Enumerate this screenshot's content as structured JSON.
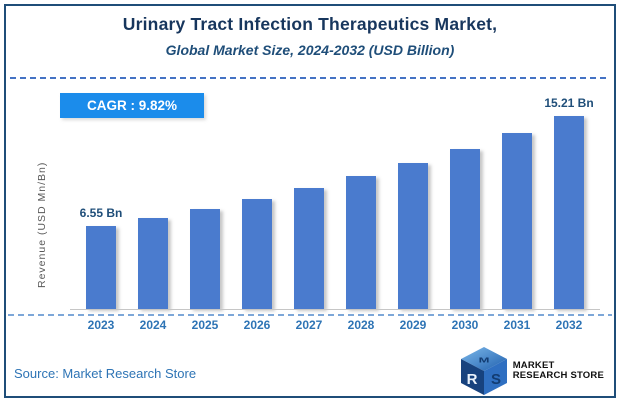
{
  "header": {
    "title": "Urinary Tract Infection Therapeutics Market,",
    "subtitle": "Global Market Size, 2024-2032 (USD Billion)"
  },
  "cagr": {
    "text": "CAGR :  9.82%"
  },
  "chart_data": {
    "type": "bar",
    "title": "Urinary Tract Infection Therapeutics Market, Global Market Size, 2024-2032 (USD Billion)",
    "categories": [
      "2023",
      "2024",
      "2025",
      "2026",
      "2027",
      "2028",
      "2029",
      "2030",
      "2031",
      "2032"
    ],
    "values": [
      6.55,
      7.19,
      7.9,
      8.67,
      9.53,
      10.46,
      11.49,
      12.62,
      13.86,
      15.21
    ],
    "unit": "USD Billion",
    "ylabel": "Revenue (USD Mn/Bn)",
    "xlabel": "",
    "ylim": [
      0,
      16
    ],
    "grid": false,
    "legend": "none",
    "cagr_percent": "9.82%",
    "bar_color": "#4a7bce",
    "data_labels": {
      "first": "6.55 Bn",
      "last": "15.21 Bn"
    }
  },
  "footer": {
    "source": "Source: Market Research Store",
    "logo_line1": "MARKET",
    "logo_line2": "RESEARCH STORE"
  },
  "colors": {
    "frame_border": "#1f4e79",
    "title": "#17365d",
    "subtitle": "#1f4e79",
    "badge_bg": "#1b8ceb",
    "badge_text": "#ffffff",
    "bar": "#4a7bce",
    "year_label": "#2e74b5",
    "value_label": "#1f4e79",
    "axis_label": "#595959",
    "dashed_top": "#4472c4",
    "dashed_bottom": "#7da7d8",
    "source_text": "#2e74b5"
  }
}
